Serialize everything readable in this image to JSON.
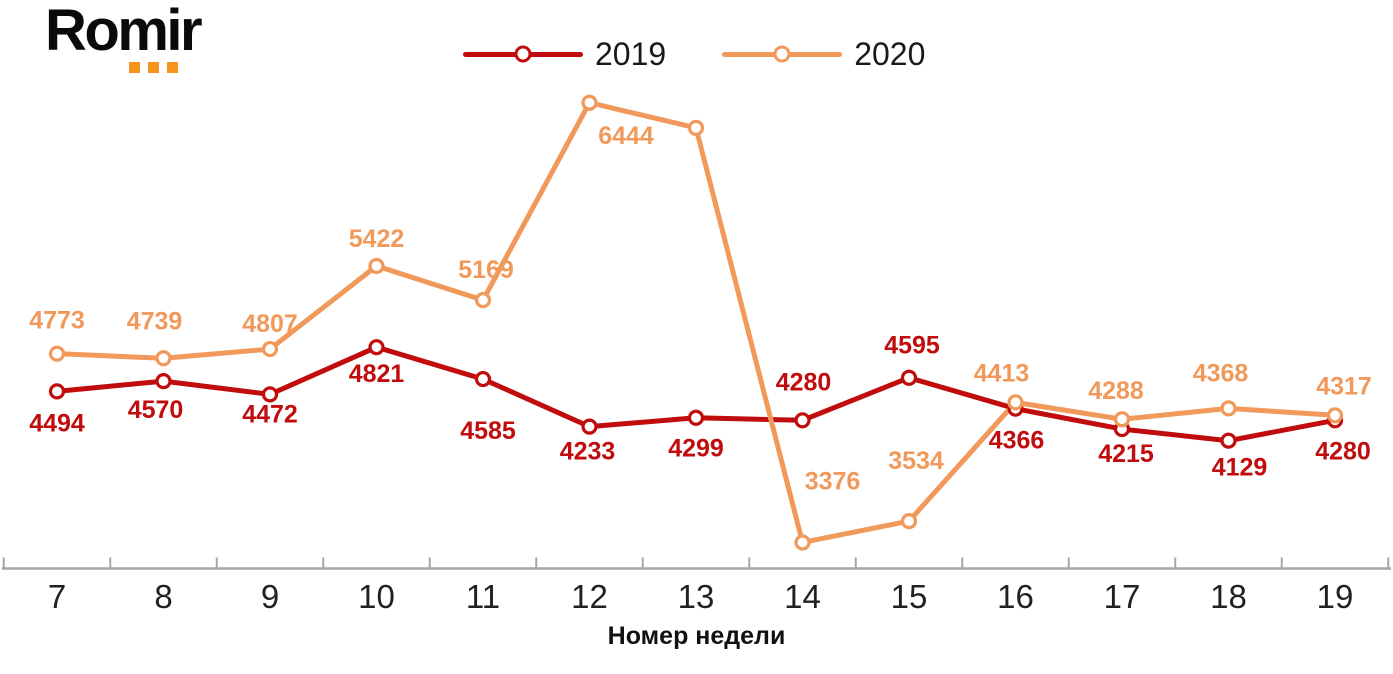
{
  "logo": {
    "text": "Romir",
    "accent_color": "#F7941E",
    "accent_squares": 3
  },
  "legend": {
    "items": [
      {
        "label": "2019",
        "color": "#C00C0C"
      },
      {
        "label": "2020",
        "color": "#F0995A"
      }
    ],
    "position": "top-center"
  },
  "chart_data": {
    "type": "line",
    "title": "",
    "xlabel": "Номер недели",
    "ylabel": "",
    "x_categories": [
      "7",
      "8",
      "9",
      "10",
      "11",
      "12",
      "13",
      "14",
      "15",
      "16",
      "17",
      "18",
      "19"
    ],
    "series": [
      {
        "name": "2019",
        "color": "#C00C0C",
        "values": [
          4494,
          4570,
          4472,
          4821,
          4585,
          4233,
          4299,
          4280,
          4595,
          4366,
          4215,
          4129,
          4280
        ],
        "point_labels": [
          "4494",
          "4570",
          "4472",
          "4821",
          "4585",
          "4233",
          "4299",
          "4280",
          "4595",
          "4366",
          "4215",
          "4129",
          "4280"
        ]
      },
      {
        "name": "2020",
        "color": "#F0995A",
        "values": [
          4773,
          4739,
          4807,
          5422,
          5169,
          6630,
          6444,
          3376,
          3534,
          4413,
          4288,
          4368,
          4317
        ],
        "point_labels": [
          "4773",
          "4739",
          "4807",
          "5422",
          "5169",
          "",
          "6444",
          "3376",
          "3534",
          "4413",
          "4288",
          "4368",
          "4317"
        ],
        "note": "week-12 marker is drawn without a visible data label; 6630 is estimated from the marker position on the plot"
      }
    ],
    "marker_style": "open-circle-white-fill",
    "grid": false,
    "y_axis_visible": false,
    "axis_color": "#A6A6A6",
    "tick_label_color": "#212121",
    "legend_position": "top-center"
  }
}
